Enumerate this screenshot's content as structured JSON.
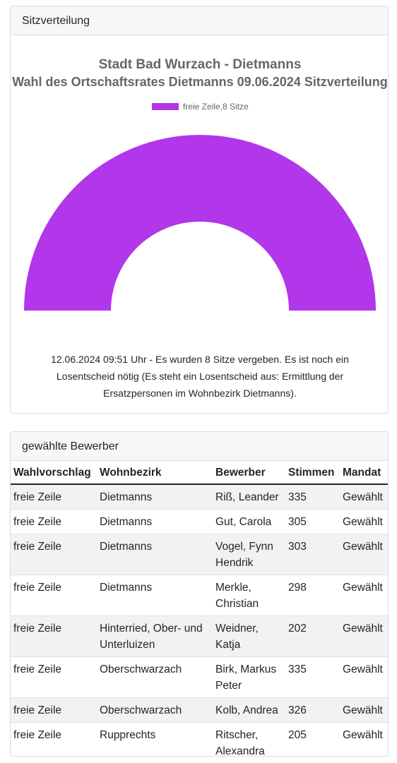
{
  "seat_card": {
    "header": "Sitzverteilung",
    "note": "12.06.2024 09:51 Uhr - Es wurden 8 Sitze vergeben. Es ist noch ein Losentscheid nötig (Es steht ein Losentscheid aus: Ermittlung der Ersatzpersonen im Wohnbezirk Dietmanns)."
  },
  "chart_data": {
    "type": "pie",
    "variant": "half-doughnut",
    "title": "Stadt Bad Wurzach - Dietmanns",
    "subtitle": "Wahl des Ortschaftsrates Dietmanns 09.06.2024 Sitzverteilung",
    "legend_position": "top",
    "series": [
      {
        "name": "freie Zeile,8 Sitze",
        "values": [
          8
        ],
        "color": "#b236ea"
      }
    ]
  },
  "results_card": {
    "header": "gewählte Bewerber",
    "columns": [
      "Wahlvorschlag",
      "Wohnbezirk",
      "Bewerber",
      "Stimmen",
      "Mandat"
    ],
    "rows": [
      [
        "freie Zeile",
        "Dietmanns",
        "Riß, Leander",
        "335",
        "Gewählt"
      ],
      [
        "freie Zeile",
        "Dietmanns",
        "Gut, Carola",
        "305",
        "Gewählt"
      ],
      [
        "freie Zeile",
        "Dietmanns",
        "Vogel, Fynn Hendrik",
        "303",
        "Gewählt"
      ],
      [
        "freie Zeile",
        "Dietmanns",
        "Merkle, Christian",
        "298",
        "Gewählt"
      ],
      [
        "freie Zeile",
        "Hinterried, Ober- und Unterluizen",
        "Weidner, Katja",
        "202",
        "Gewählt"
      ],
      [
        "freie Zeile",
        "Oberschwarzach",
        "Birk, Markus Peter",
        "335",
        "Gewählt"
      ],
      [
        "freie Zeile",
        "Oberschwarzach",
        "Kolb, Andrea",
        "326",
        "Gewählt"
      ],
      [
        "freie Zeile",
        "Rupprechts",
        "Ritscher, Alexandra",
        "205",
        "Gewählt"
      ]
    ]
  }
}
